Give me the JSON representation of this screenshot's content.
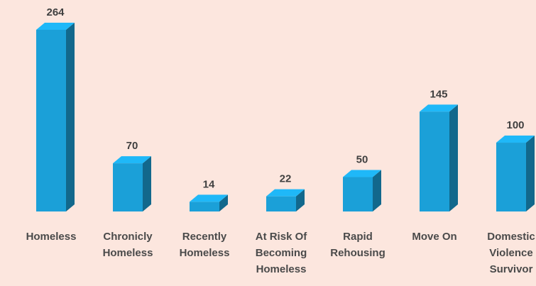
{
  "chart_data": {
    "type": "bar3d",
    "categories": [
      "Homeless",
      "Chronicly Homeless",
      "Recently Homeless",
      "At Risk Of Becoming Homeless",
      "Rapid Rehousing",
      "Move On",
      "Domestic Violence Survivor"
    ],
    "values": [
      264,
      70,
      14,
      22,
      50,
      145,
      100
    ],
    "color": "#1ba0d8"
  }
}
